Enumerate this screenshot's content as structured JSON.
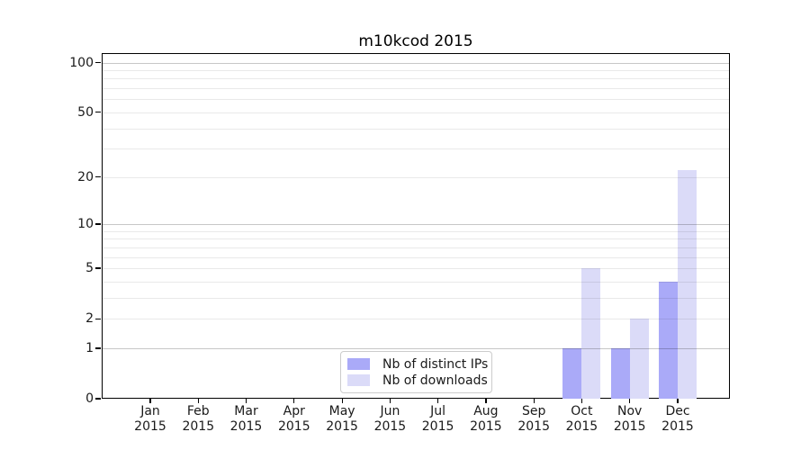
{
  "title": "m10kcod 2015",
  "colors": {
    "distinct_ips": "#aaaaf8",
    "downloads": "#dbdbf8",
    "grid_major": "rgba(0,0,0,0.22)",
    "grid_minor": "rgba(0,0,0,0.085)",
    "axis": "#000000",
    "text": "#1a1a1a"
  },
  "legend": {
    "items": [
      {
        "key": "distinct_ips",
        "label": "Nb of distinct IPs"
      },
      {
        "key": "downloads",
        "label": "Nb of downloads"
      }
    ]
  },
  "x_axis": {
    "months": [
      "Jan",
      "Feb",
      "Mar",
      "Apr",
      "May",
      "Jun",
      "Jul",
      "Aug",
      "Sep",
      "Oct",
      "Nov",
      "Dec"
    ],
    "year_label": "2015"
  },
  "chart_data": {
    "type": "bar",
    "title": "m10kcod 2015",
    "categories": [
      "Jan 2015",
      "Feb 2015",
      "Mar 2015",
      "Apr 2015",
      "May 2015",
      "Jun 2015",
      "Jul 2015",
      "Aug 2015",
      "Sep 2015",
      "Oct 2015",
      "Nov 2015",
      "Dec 2015"
    ],
    "series": [
      {
        "name": "Nb of distinct IPs",
        "color": "#aaaaf8",
        "values": [
          0,
          0,
          0,
          0,
          0,
          0,
          0,
          0,
          0,
          1,
          1,
          4
        ]
      },
      {
        "name": "Nb of downloads",
        "color": "#dbdbf8",
        "values": [
          0,
          0,
          0,
          0,
          0,
          0,
          0,
          0,
          0,
          5,
          2,
          22
        ]
      }
    ],
    "xlabel": "",
    "ylabel": "",
    "yscale": "log10(1+y)",
    "yticks": [
      0,
      1,
      2,
      5,
      10,
      20,
      50,
      100
    ],
    "ylim": [
      0,
      114
    ],
    "grid": "horizontal",
    "grid_major_at": [
      1,
      10,
      100
    ],
    "grid_minor_at": [
      2,
      3,
      4,
      5,
      6,
      7,
      8,
      9,
      20,
      30,
      40,
      50,
      60,
      70,
      80,
      90
    ],
    "legend_position": "lower center"
  }
}
